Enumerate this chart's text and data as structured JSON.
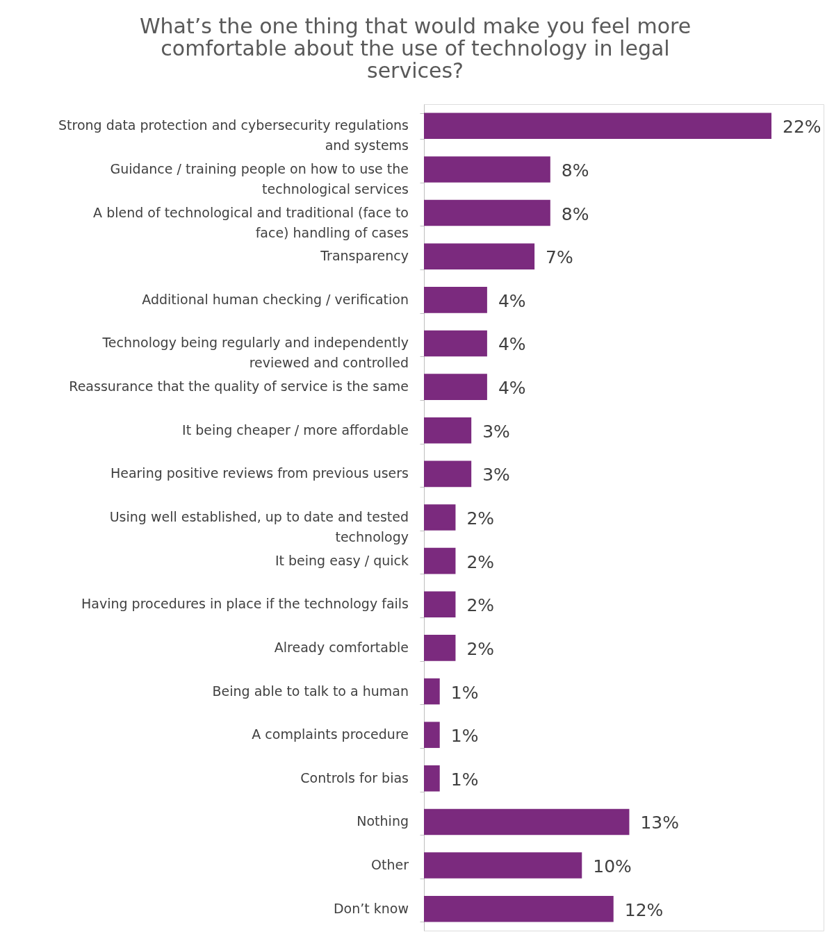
{
  "chart_data": {
    "type": "bar",
    "orientation": "horizontal",
    "title": "What’s the one thing that would make you feel more comfortable about the use of technology in legal services?",
    "categories": [
      "Strong data protection and cybersecurity regulations and systems",
      "Guidance / training people on how to use the technological services",
      "A blend of technological and traditional (face to face) handling of cases",
      "Transparency",
      "Additional human checking / verification",
      "Technology being regularly and independently reviewed and controlled",
      "Reassurance that the quality of service is the same",
      "It being cheaper / more affordable",
      "Hearing positive reviews from previous users",
      "Using well established, up to date and tested technology",
      "It being easy / quick",
      "Having procedures in place if the technology fails",
      "Already comfortable",
      "Being able to talk to a human",
      "A complaints procedure",
      "Controls for bias",
      "Nothing",
      "Other",
      "Don’t know"
    ],
    "values": [
      22,
      8,
      8,
      7,
      4,
      4,
      4,
      3,
      3,
      2,
      2,
      2,
      2,
      1,
      1,
      1,
      13,
      10,
      12
    ],
    "value_labels": [
      "22%",
      "8%",
      "8%",
      "7%",
      "4%",
      "4%",
      "4%",
      "3%",
      "3%",
      "2%",
      "2%",
      "2%",
      "2%",
      "1%",
      "1%",
      "1%",
      "13%",
      "10%",
      "12%"
    ],
    "color": "#7b2a7e",
    "grid": false
  }
}
